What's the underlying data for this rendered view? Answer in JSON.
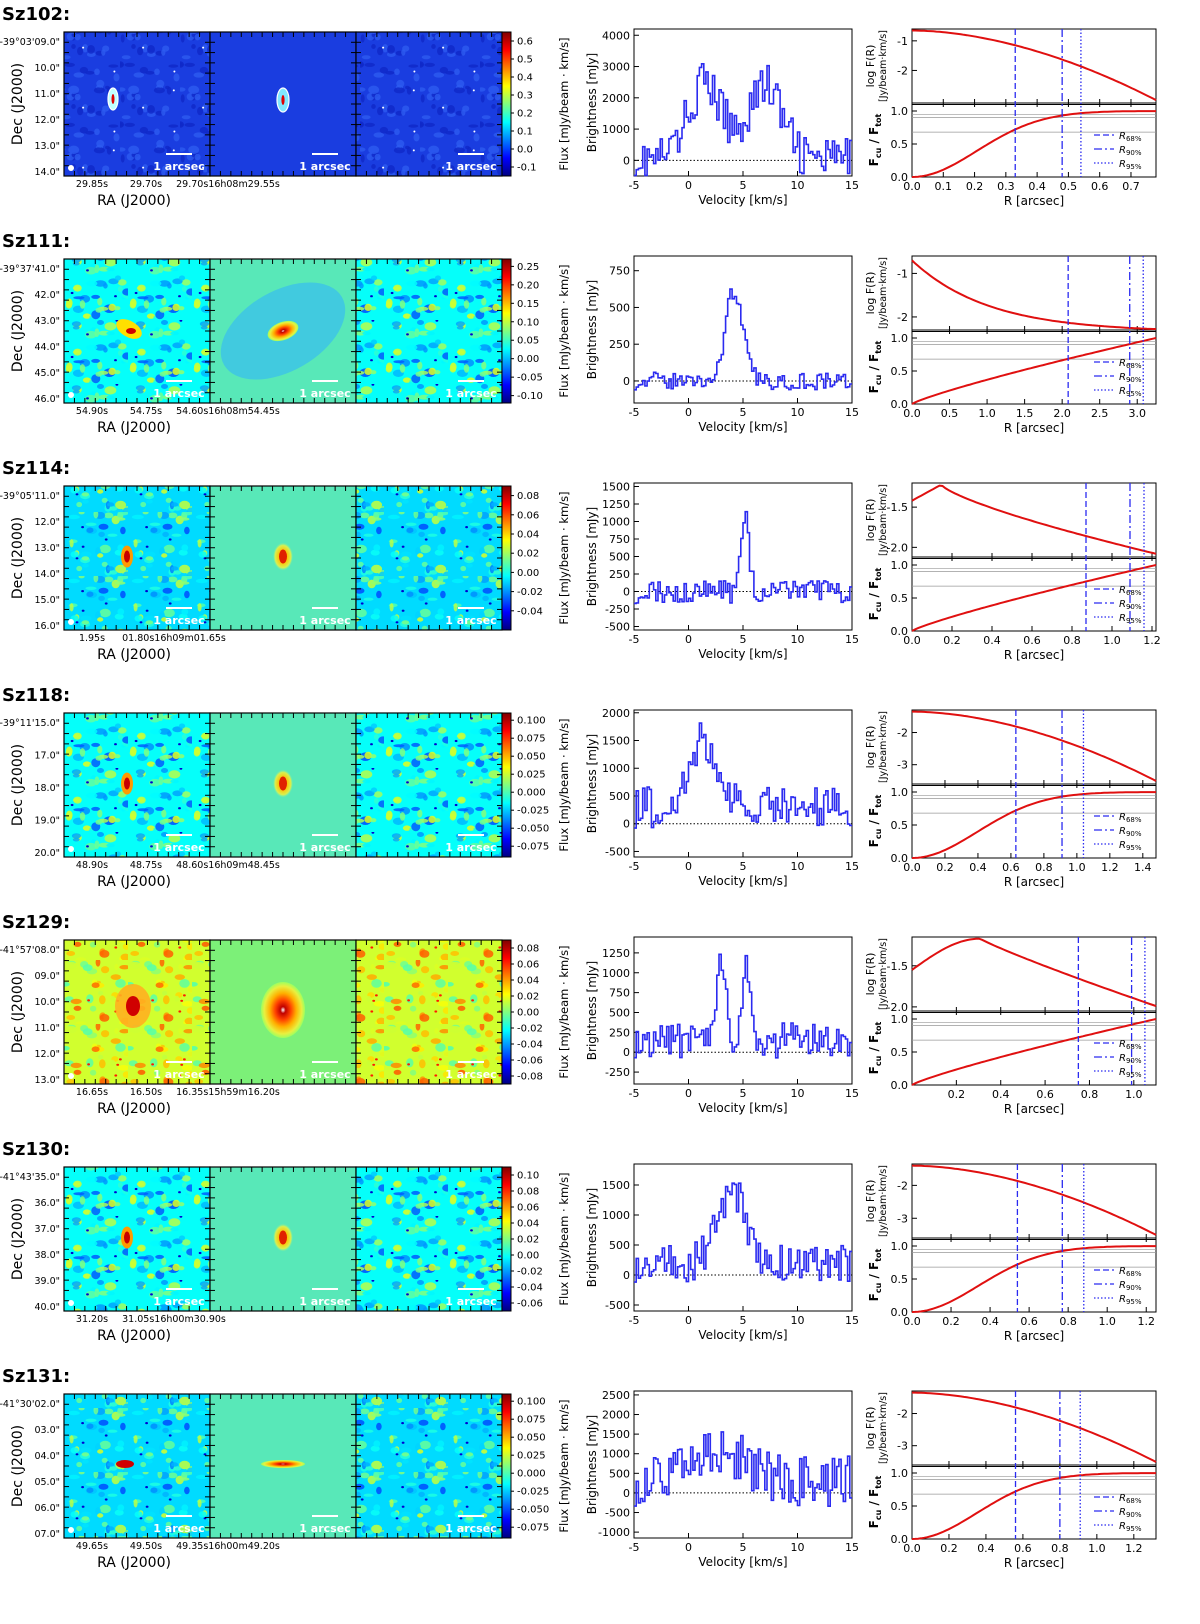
{
  "axis_labels": {
    "ra": "RA (J2000)",
    "dec": "Dec (J2000)",
    "flux": "Flux [mJy/beam · km/s]",
    "brightness": "Brightness [mJy]",
    "velocity": "Velocity [km/s]",
    "logF": "log F(R)",
    "logF_unit": "[Jy/beam·km/s]",
    "fcu": "F",
    "fcu_sub": "cu",
    "ftot_sub": "tot",
    "radius": "R [arcsec]",
    "scalebar": "1 arcsec",
    "r68": "68%",
    "r90": "90%",
    "r95": "95%"
  },
  "chart_data": [
    {
      "type": "panel-row",
      "name": "Sz102:",
      "map_style": "compact",
      "dec_ticks": [
        "-39°03'09.0\"",
        "10.0\"",
        "11.0\"",
        "12.0\"",
        "13.0\"",
        "14.0\""
      ],
      "ra_ticks": [
        "29.85s",
        "29.70s",
        "29.70s16h08m29.55s"
      ],
      "flux_ticks": [
        "0.6",
        "0.5",
        "0.4",
        "0.3",
        "0.2",
        "0.1",
        "0.0",
        "-0.1"
      ],
      "flux_range": [
        -0.15,
        0.65
      ],
      "spectrum": {
        "ylim": [
          -500,
          4200
        ],
        "yticks": [
          "4000",
          "3000",
          "2000",
          "1000",
          "0"
        ],
        "ytick_values": [
          4000,
          3000,
          2000,
          1000,
          0
        ],
        "xlim": [
          -5,
          15
        ],
        "xticks": [
          "-5",
          "0",
          "5",
          "10",
          "15"
        ],
        "profile": "double-peak"
      },
      "radial": {
        "xlim": [
          0,
          0.78
        ],
        "xticks": [
          "0.0",
          "0.1",
          "0.2",
          "0.3",
          "0.4",
          "0.5",
          "0.6",
          "0.7"
        ],
        "xtick_values": [
          0,
          0.1,
          0.2,
          0.3,
          0.4,
          0.5,
          0.6,
          0.7
        ],
        "logf_ticks": [
          "-1",
          "-2"
        ],
        "logf_tick_values": [
          -1,
          -2
        ],
        "logf_range": [
          -0.6,
          -3.1
        ],
        "logf_curve": "decreasing",
        "fcu_ticks": [
          "1.0",
          "0.5",
          "0.0"
        ],
        "r68": 0.33,
        "r90": 0.48,
        "r95": 0.54
      }
    },
    {
      "type": "panel-row",
      "name": "Sz111:",
      "map_style": "compact",
      "dec_ticks": [
        "-39°37'41.0\"",
        "42.0\"",
        "43.0\"",
        "44.0\"",
        "45.0\"",
        "46.0\""
      ],
      "ra_ticks": [
        "54.90s",
        "54.75s",
        "54.60s16h08m54.45s"
      ],
      "flux_ticks": [
        "0.25",
        "0.20",
        "0.15",
        "0.10",
        "0.05",
        "0.00",
        "-0.05",
        "-0.10"
      ],
      "flux_range": [
        -0.12,
        0.27
      ],
      "spectrum": {
        "ylim": [
          -150,
          850
        ],
        "yticks": [
          "750",
          "500",
          "250",
          "0"
        ],
        "ytick_values": [
          750,
          500,
          250,
          0
        ],
        "xlim": [
          -5,
          15
        ],
        "xticks": [
          "-5",
          "0",
          "5",
          "10",
          "15"
        ],
        "profile": "central-peak"
      },
      "radial": {
        "xlim": [
          0,
          3.25
        ],
        "xticks": [
          "0.0",
          "0.5",
          "1.0",
          "1.5",
          "2.0",
          "2.5",
          "3.0"
        ],
        "xtick_values": [
          0,
          0.5,
          1.0,
          1.5,
          2.0,
          2.5,
          3.0
        ],
        "logf_ticks": [
          "-1",
          "-2"
        ],
        "logf_tick_values": [
          -1,
          -2
        ],
        "logf_range": [
          -0.6,
          -2.3
        ],
        "logf_curve": "steep-drop",
        "fcu_ticks": [
          "1.0",
          "0.5",
          "0.0"
        ],
        "r68": 2.08,
        "r90": 2.9,
        "r95": 3.08
      }
    },
    {
      "type": "panel-row",
      "name": "Sz114:",
      "map_style": "compact",
      "dec_ticks": [
        "-39°05'11.0\"",
        "12.0\"",
        "13.0\"",
        "14.0\"",
        "15.0\"",
        "16.0\""
      ],
      "ra_ticks": [
        "1.95s",
        "01.80s16h09m01.65s"
      ],
      "flux_ticks": [
        "0.08",
        "0.06",
        "0.04",
        "0.02",
        "0.00",
        "-0.02",
        "-0.04"
      ],
      "flux_range": [
        -0.06,
        0.09
      ],
      "spectrum": {
        "ylim": [
          -550,
          1550
        ],
        "yticks": [
          "1500",
          "1250",
          "1000",
          "750",
          "500",
          "250",
          "0",
          "-250",
          "-500"
        ],
        "ytick_values": [
          1500,
          1250,
          1000,
          750,
          500,
          250,
          0,
          -250,
          -500
        ],
        "xlim": [
          -5,
          15
        ],
        "xticks": [
          "-5",
          "0",
          "5",
          "10",
          "15"
        ],
        "profile": "narrow-peak"
      },
      "radial": {
        "xlim": [
          0,
          1.22
        ],
        "xticks": [
          "0.0",
          "0.2",
          "0.4",
          "0.6",
          "0.8",
          "1.0",
          "1.2"
        ],
        "xtick_values": [
          0,
          0.2,
          0.4,
          0.6,
          0.8,
          1.0,
          1.2
        ],
        "logf_ticks": [
          "-1.5",
          "-2.0"
        ],
        "logf_tick_values": [
          -1.5,
          -2.0
        ],
        "logf_range": [
          -1.2,
          -2.12
        ],
        "logf_curve": "rise-fall",
        "fcu_ticks": [
          "1.0",
          "0.5",
          "0.0"
        ],
        "r68": 0.87,
        "r90": 1.09,
        "r95": 1.16
      }
    },
    {
      "type": "panel-row",
      "name": "Sz118:",
      "map_style": "compact",
      "dec_ticks": [
        "-39°11'15.0\"",
        "17.0\"",
        "18.0\"",
        "19.0\"",
        "20.0\""
      ],
      "ra_ticks": [
        "48.90s",
        "48.75s",
        "48.60s16h09m48.45s"
      ],
      "flux_ticks": [
        "0.100",
        "0.075",
        "0.050",
        "0.025",
        "0.000",
        "-0.025",
        "-0.050",
        "-0.075"
      ],
      "flux_range": [
        -0.09,
        0.11
      ],
      "spectrum": {
        "ylim": [
          -600,
          2050
        ],
        "yticks": [
          "2000",
          "1500",
          "1000",
          "500",
          "0",
          "-500"
        ],
        "ytick_values": [
          2000,
          1500,
          1000,
          500,
          0,
          -500
        ],
        "xlim": [
          -5,
          15
        ],
        "xticks": [
          "-5",
          "0",
          "5",
          "10",
          "15"
        ],
        "profile": "broad-left"
      },
      "radial": {
        "xlim": [
          0,
          1.48
        ],
        "xticks": [
          "0.0",
          "0.2",
          "0.4",
          "0.6",
          "0.8",
          "1.0",
          "1.2",
          "1.4"
        ],
        "xtick_values": [
          0,
          0.2,
          0.4,
          0.6,
          0.8,
          1.0,
          1.2,
          1.4
        ],
        "logf_ticks": [
          "-2",
          "-3"
        ],
        "logf_tick_values": [
          -2,
          -3
        ],
        "logf_range": [
          -1.3,
          -3.6
        ],
        "logf_curve": "decreasing",
        "fcu_ticks": [
          "1.0",
          "0.5",
          "0.0"
        ],
        "r68": 0.63,
        "r90": 0.91,
        "r95": 1.04
      }
    },
    {
      "type": "panel-row",
      "name": "Sz129:",
      "map_style": "warm",
      "dec_ticks": [
        "-41°57'08.0\"",
        "09.0\"",
        "10.0\"",
        "11.0\"",
        "12.0\"",
        "13.0\""
      ],
      "ra_ticks": [
        "16.65s",
        "16.50s",
        "16.35s15h59m16.20s"
      ],
      "flux_ticks": [
        "0.08",
        "0.06",
        "0.04",
        "0.02",
        "0.00",
        "-0.02",
        "-0.04",
        "-0.06",
        "-0.08"
      ],
      "flux_range": [
        -0.09,
        0.09
      ],
      "spectrum": {
        "ylim": [
          -400,
          1450
        ],
        "yticks": [
          "1250",
          "1000",
          "750",
          "500",
          "250",
          "0",
          "-250"
        ],
        "ytick_values": [
          1250,
          1000,
          750,
          500,
          250,
          0,
          -250
        ],
        "xlim": [
          -5,
          15
        ],
        "xticks": [
          "-5",
          "0",
          "5",
          "10",
          "15"
        ],
        "profile": "double-narrow"
      },
      "radial": {
        "xlim": [
          0,
          1.1
        ],
        "xticks": [
          "0.2",
          "0.4",
          "0.6",
          "0.8",
          "1.0"
        ],
        "xtick_values": [
          0.2,
          0.4,
          0.6,
          0.8,
          1.0
        ],
        "logf_ticks": [
          "-1.5",
          "-2.0"
        ],
        "logf_tick_values": [
          -1.5,
          -2.0
        ],
        "logf_range": [
          -1.15,
          -2.05
        ],
        "logf_curve": "rise-fall-late",
        "fcu_ticks": [
          "1.0",
          "0.5",
          "0.0"
        ],
        "r68": 0.75,
        "r90": 0.99,
        "r95": 1.05
      }
    },
    {
      "type": "panel-row",
      "name": "Sz130:",
      "map_style": "compact",
      "dec_ticks": [
        "-41°43'35.0\"",
        "36.0\"",
        "37.0\"",
        "38.0\"",
        "39.0\"",
        "40.0\""
      ],
      "ra_ticks": [
        "31.20s",
        "31.05s16h00m30.90s"
      ],
      "flux_ticks": [
        "0.10",
        "0.08",
        "0.06",
        "0.04",
        "0.02",
        "0.00",
        "-0.02",
        "-0.04",
        "-0.06"
      ],
      "flux_range": [
        -0.07,
        0.11
      ],
      "spectrum": {
        "ylim": [
          -600,
          1850
        ],
        "yticks": [
          "1500",
          "1000",
          "500",
          "0",
          "-500"
        ],
        "ytick_values": [
          1500,
          1000,
          500,
          0,
          -500
        ],
        "xlim": [
          -5,
          15
        ],
        "xticks": [
          "-5",
          "0",
          "5",
          "10",
          "15"
        ],
        "profile": "broad-right"
      },
      "radial": {
        "xlim": [
          0,
          1.25
        ],
        "xticks": [
          "0.0",
          "0.2",
          "0.4",
          "0.6",
          "0.8",
          "1.0",
          "1.2"
        ],
        "xtick_values": [
          0,
          0.2,
          0.4,
          0.6,
          0.8,
          1.0,
          1.2
        ],
        "logf_ticks": [
          "-2",
          "-3"
        ],
        "logf_tick_values": [
          -2,
          -3
        ],
        "logf_range": [
          -1.35,
          -3.6
        ],
        "logf_curve": "decreasing",
        "fcu_ticks": [
          "1.0",
          "0.5",
          "0.0"
        ],
        "r68": 0.54,
        "r90": 0.77,
        "r95": 0.88
      }
    },
    {
      "type": "panel-row",
      "name": "Sz131:",
      "map_style": "compact",
      "dec_ticks": [
        "-41°30'02.0\"",
        "03.0\"",
        "04.0\"",
        "05.0\"",
        "06.0\"",
        "07.0\""
      ],
      "ra_ticks": [
        "49.65s",
        "49.50s",
        "49.35s16h00m49.20s"
      ],
      "flux_ticks": [
        "0.100",
        "0.075",
        "0.050",
        "0.025",
        "0.000",
        "-0.025",
        "-0.050",
        "-0.075"
      ],
      "flux_range": [
        -0.09,
        0.11
      ],
      "spectrum": {
        "ylim": [
          -1150,
          2600
        ],
        "yticks": [
          "2500",
          "2000",
          "1500",
          "1000",
          "500",
          "0",
          "-500",
          "-1000"
        ],
        "ytick_values": [
          2500,
          2000,
          1500,
          1000,
          500,
          0,
          -500,
          -1000
        ],
        "xlim": [
          -5,
          15
        ],
        "xticks": [
          "-5",
          "0",
          "5",
          "10",
          "15"
        ],
        "profile": "noisy"
      },
      "radial": {
        "xlim": [
          0,
          1.32
        ],
        "xticks": [
          "0.0",
          "0.2",
          "0.4",
          "0.6",
          "0.8",
          "1.0",
          "1.2"
        ],
        "xtick_values": [
          0,
          0.2,
          0.4,
          0.6,
          0.8,
          1.0,
          1.2
        ],
        "logf_ticks": [
          "-2",
          "-3"
        ],
        "logf_tick_values": [
          -2,
          -3
        ],
        "logf_range": [
          -1.3,
          -3.6
        ],
        "logf_curve": "decreasing",
        "fcu_ticks": [
          "1.0",
          "0.5",
          "0.0"
        ],
        "r68": 0.56,
        "r90": 0.8,
        "r95": 0.91
      }
    }
  ]
}
